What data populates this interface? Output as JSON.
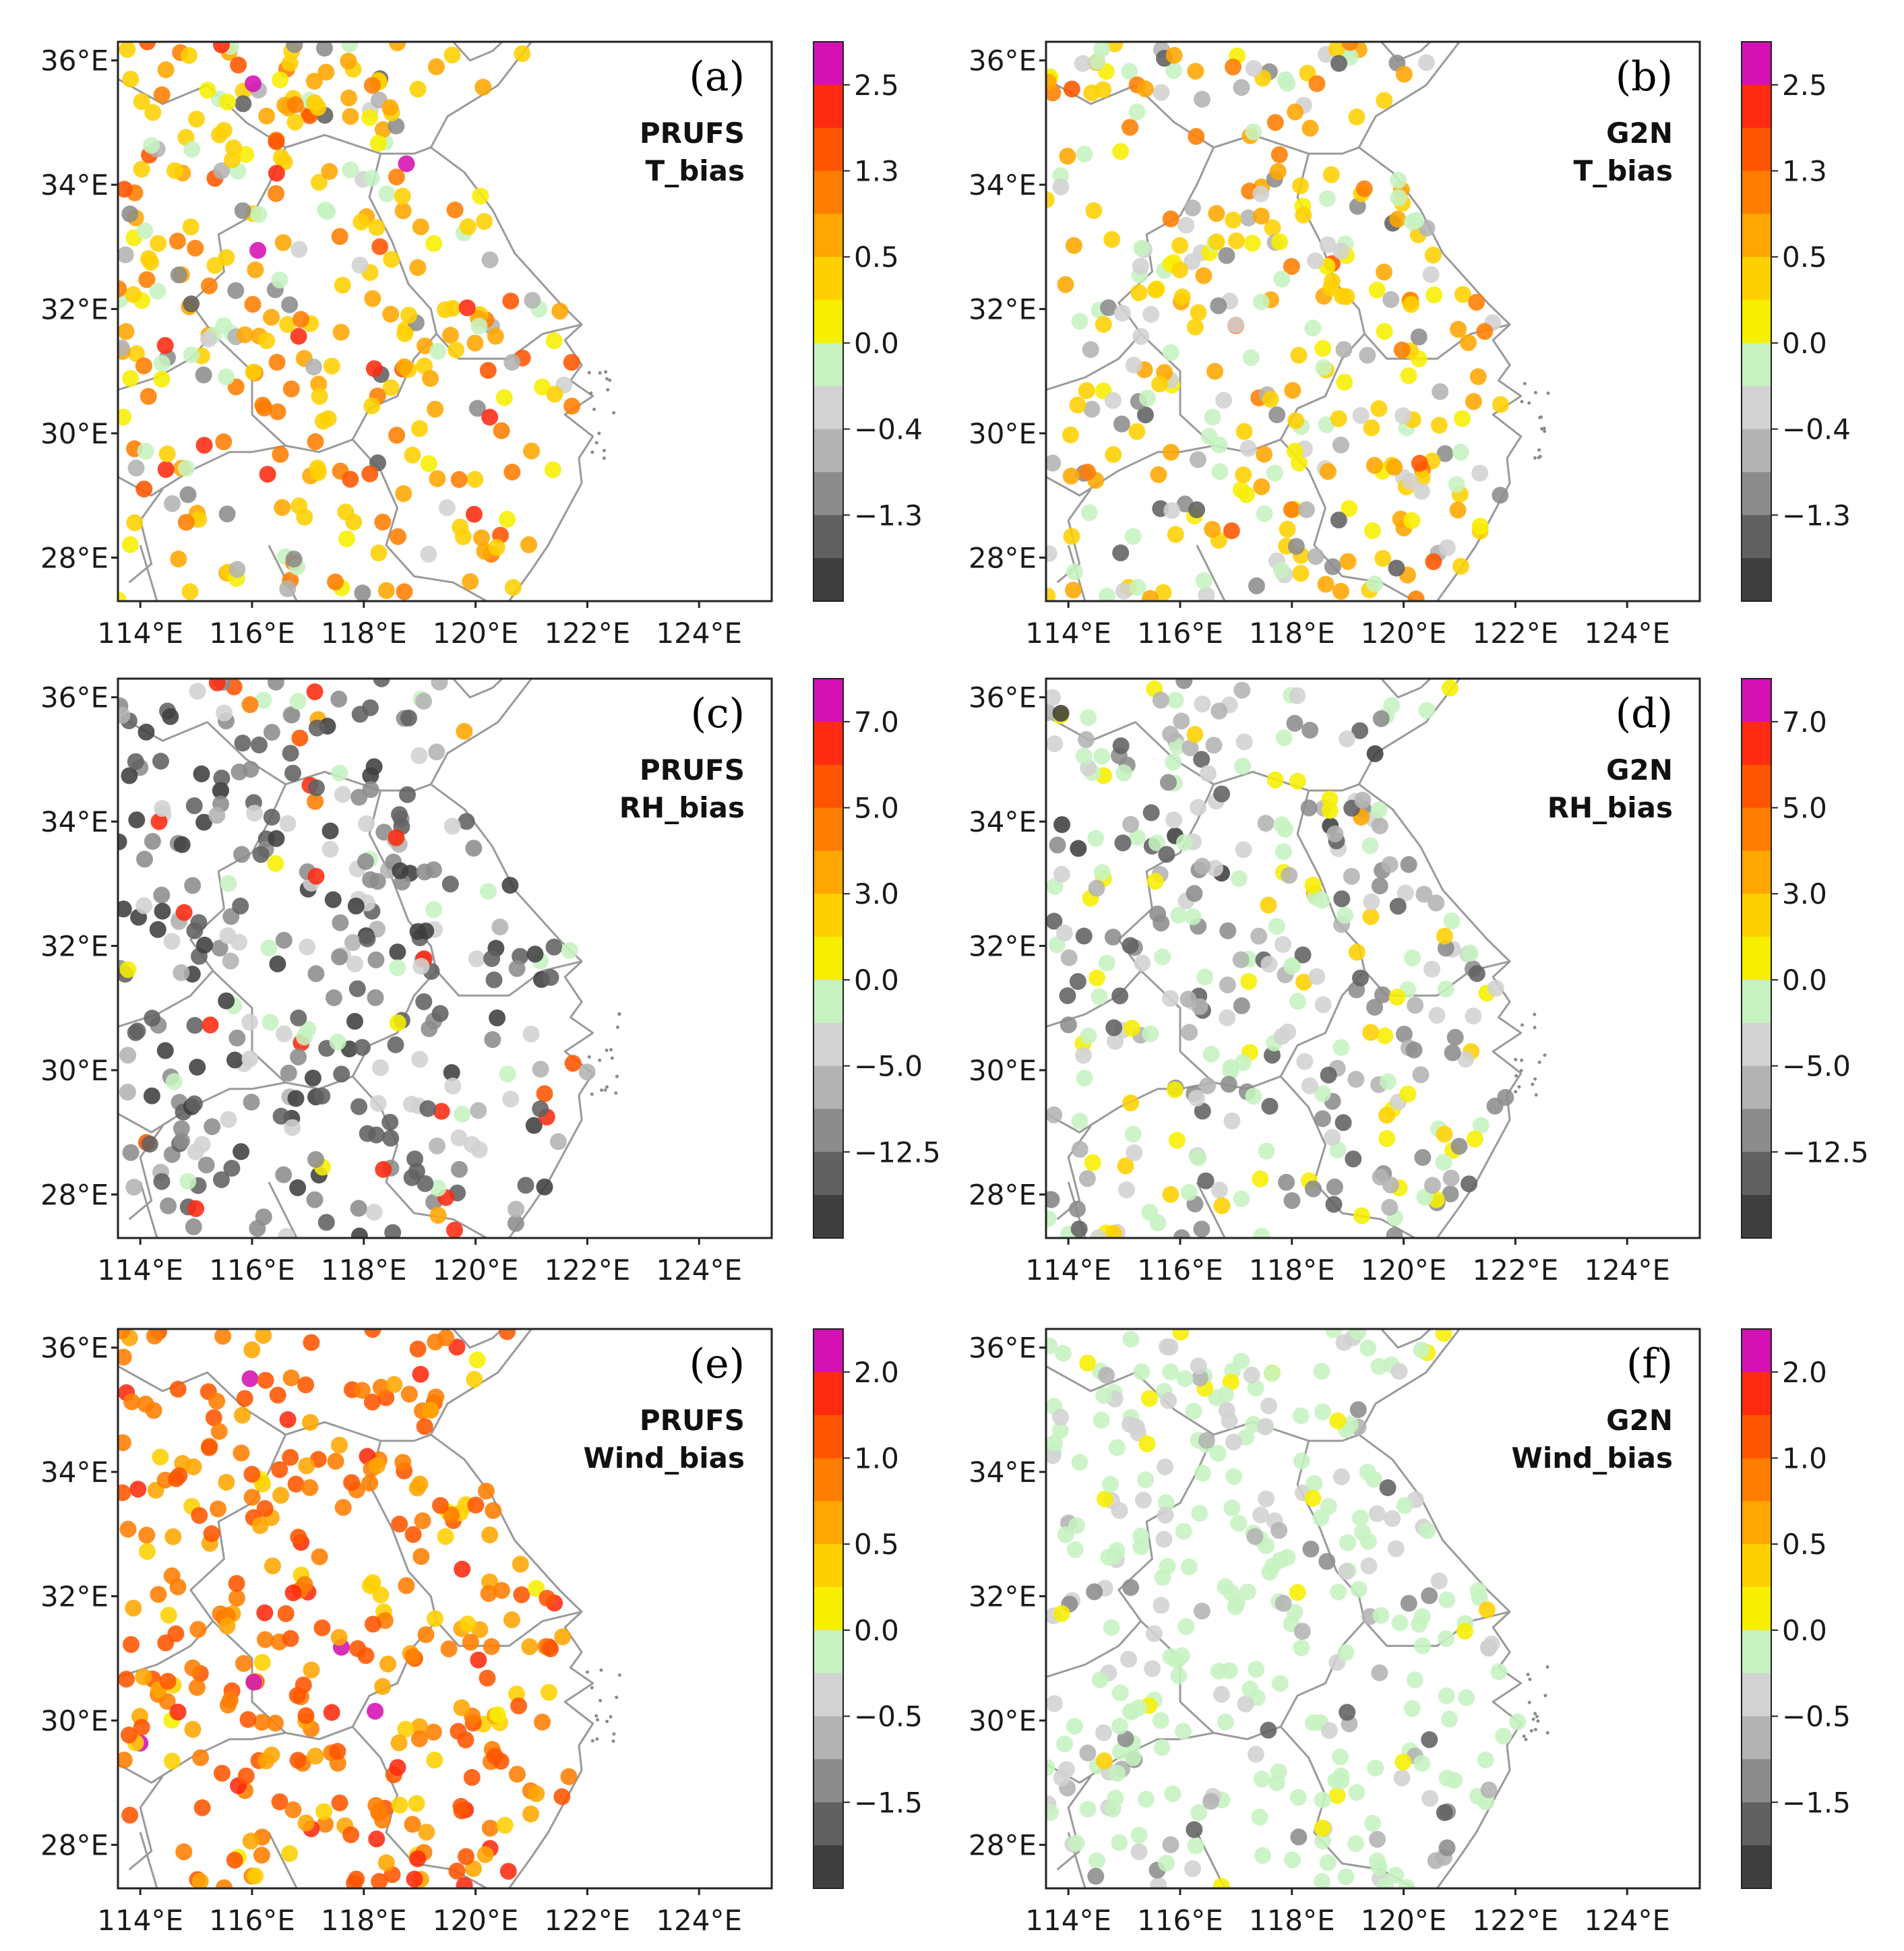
{
  "panels": [
    {
      "id": "a",
      "label": "(a)",
      "model": "PRUFS",
      "variable": "T_bias",
      "seed": 11
    },
    {
      "id": "b",
      "label": "(b)",
      "model": "G2N",
      "variable": "T_bias",
      "seed": 23
    },
    {
      "id": "c",
      "label": "(c)",
      "model": "PRUFS",
      "variable": "RH_bias",
      "seed": 37
    },
    {
      "id": "d",
      "label": "(d)",
      "model": "G2N",
      "variable": "RH_bias",
      "seed": 41
    },
    {
      "id": "e",
      "label": "(e)",
      "model": "PRUFS",
      "variable": "Wind_bias",
      "seed": 53
    },
    {
      "id": "f",
      "label": "(f)",
      "model": "G2N",
      "variable": "Wind_bias",
      "seed": 67
    }
  ],
  "axes": {
    "lon_ticks": [
      "114°E",
      "116°E",
      "118°E",
      "120°E",
      "122°E",
      "124°E"
    ],
    "lon_values": [
      114,
      116,
      118,
      120,
      122,
      124
    ],
    "lat_ticks": [
      "36°E",
      "34°E",
      "32°E",
      "30°E",
      "28°E"
    ],
    "lat_values": [
      36,
      34,
      32,
      30,
      28
    ],
    "lon_range": [
      113.6,
      125.3
    ],
    "lat_range": [
      27.3,
      36.3
    ]
  },
  "colorbars": [
    {
      "row": 0,
      "labels": [
        "2.5",
        "1.3",
        "0.5",
        "0.0",
        "−0.4",
        "−1.3"
      ]
    },
    {
      "row": 1,
      "labels": [
        "7.0",
        "5.0",
        "3.0",
        "0.0",
        "−5.0",
        "−12.5"
      ]
    },
    {
      "row": 2,
      "labels": [
        "2.0",
        "1.0",
        "0.5",
        "0.0",
        "−0.5",
        "−1.5"
      ]
    }
  ],
  "colors": {
    "levels": [
      "#3f3f3f",
      "#616161",
      "#8c8c8c",
      "#b3b3b3",
      "#d2d2d2",
      "#c6f2c0",
      "#f7ef00",
      "#ffd000",
      "#ffa600",
      "#ff7d00",
      "#ff5500",
      "#ff2a10",
      "#d411b3"
    ]
  },
  "chart_data": {
    "type": "scatter",
    "description_level_weights": {
      "a": [
        0,
        2,
        3,
        4,
        3,
        6,
        5,
        18,
        12,
        10,
        4,
        2,
        1
      ],
      "b": [
        0,
        2,
        3,
        3,
        10,
        14,
        8,
        18,
        14,
        6,
        1,
        0,
        0
      ],
      "c": [
        16,
        18,
        20,
        10,
        10,
        4,
        1,
        1,
        1,
        1,
        1,
        2,
        0
      ],
      "d": [
        2,
        8,
        12,
        14,
        18,
        22,
        8,
        4,
        1,
        0,
        0,
        0,
        0
      ],
      "e": [
        0,
        0,
        0,
        0,
        0,
        0,
        2,
        8,
        16,
        22,
        22,
        6,
        2
      ],
      "f": [
        0,
        1,
        3,
        6,
        16,
        40,
        4,
        1,
        0,
        0,
        0,
        0,
        0
      ]
    }
  }
}
